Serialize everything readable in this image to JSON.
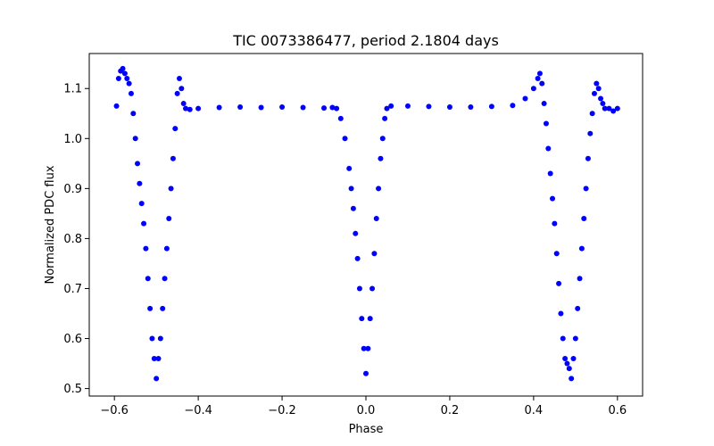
{
  "chart_data": {
    "type": "scatter",
    "title": "TIC 0073386477, period 2.1804 days",
    "xlabel": "Phase",
    "ylabel": "Normalized PDC flux",
    "xlim": [
      -0.66,
      0.66
    ],
    "ylim": [
      0.485,
      1.17
    ],
    "xticks": [
      -0.6,
      -0.4,
      -0.2,
      0.0,
      0.2,
      0.4,
      0.6
    ],
    "xtick_labels": [
      "−0.6",
      "−0.4",
      "−0.2",
      "0.0",
      "0.2",
      "0.4",
      "0.6"
    ],
    "yticks": [
      0.5,
      0.6,
      0.7,
      0.8,
      0.9,
      1.0,
      1.1
    ],
    "ytick_labels": [
      "0.5",
      "0.6",
      "0.7",
      "0.8",
      "0.9",
      "1.0",
      "1.1"
    ],
    "grid": false,
    "series": [
      {
        "color": "#0000ff",
        "marker": "circle",
        "points": [
          [
            -0.595,
            1.065
          ],
          [
            -0.59,
            1.12
          ],
          [
            -0.585,
            1.135
          ],
          [
            -0.58,
            1.14
          ],
          [
            -0.575,
            1.13
          ],
          [
            -0.57,
            1.12
          ],
          [
            -0.565,
            1.11
          ],
          [
            -0.56,
            1.09
          ],
          [
            -0.555,
            1.05
          ],
          [
            -0.55,
            1.0
          ],
          [
            -0.545,
            0.95
          ],
          [
            -0.54,
            0.91
          ],
          [
            -0.535,
            0.87
          ],
          [
            -0.53,
            0.83
          ],
          [
            -0.525,
            0.78
          ],
          [
            -0.52,
            0.72
          ],
          [
            -0.515,
            0.66
          ],
          [
            -0.51,
            0.6
          ],
          [
            -0.505,
            0.56
          ],
          [
            -0.5,
            0.52
          ],
          [
            -0.495,
            0.56
          ],
          [
            -0.49,
            0.6
          ],
          [
            -0.485,
            0.66
          ],
          [
            -0.48,
            0.72
          ],
          [
            -0.475,
            0.78
          ],
          [
            -0.47,
            0.84
          ],
          [
            -0.465,
            0.9
          ],
          [
            -0.46,
            0.96
          ],
          [
            -0.455,
            1.02
          ],
          [
            -0.45,
            1.09
          ],
          [
            -0.445,
            1.12
          ],
          [
            -0.44,
            1.1
          ],
          [
            -0.435,
            1.07
          ],
          [
            -0.43,
            1.06
          ],
          [
            -0.42,
            1.058
          ],
          [
            -0.4,
            1.06
          ],
          [
            -0.35,
            1.062
          ],
          [
            -0.3,
            1.063
          ],
          [
            -0.25,
            1.062
          ],
          [
            -0.2,
            1.063
          ],
          [
            -0.15,
            1.062
          ],
          [
            -0.1,
            1.061
          ],
          [
            -0.08,
            1.062
          ],
          [
            -0.07,
            1.06
          ],
          [
            -0.06,
            1.04
          ],
          [
            -0.05,
            1.0
          ],
          [
            -0.04,
            0.94
          ],
          [
            -0.035,
            0.9
          ],
          [
            -0.03,
            0.86
          ],
          [
            -0.025,
            0.81
          ],
          [
            -0.02,
            0.76
          ],
          [
            -0.015,
            0.7
          ],
          [
            -0.01,
            0.64
          ],
          [
            -0.005,
            0.58
          ],
          [
            0.0,
            0.53
          ],
          [
            0.005,
            0.58
          ],
          [
            0.01,
            0.64
          ],
          [
            0.015,
            0.7
          ],
          [
            0.02,
            0.77
          ],
          [
            0.025,
            0.84
          ],
          [
            0.03,
            0.9
          ],
          [
            0.035,
            0.96
          ],
          [
            0.04,
            1.0
          ],
          [
            0.045,
            1.04
          ],
          [
            0.05,
            1.06
          ],
          [
            0.06,
            1.065
          ],
          [
            0.1,
            1.065
          ],
          [
            0.15,
            1.064
          ],
          [
            0.2,
            1.063
          ],
          [
            0.25,
            1.063
          ],
          [
            0.3,
            1.064
          ],
          [
            0.35,
            1.066
          ],
          [
            0.38,
            1.08
          ],
          [
            0.4,
            1.1
          ],
          [
            0.41,
            1.12
          ],
          [
            0.415,
            1.13
          ],
          [
            0.42,
            1.11
          ],
          [
            0.425,
            1.07
          ],
          [
            0.43,
            1.03
          ],
          [
            0.435,
            0.98
          ],
          [
            0.44,
            0.93
          ],
          [
            0.445,
            0.88
          ],
          [
            0.45,
            0.83
          ],
          [
            0.455,
            0.77
          ],
          [
            0.46,
            0.71
          ],
          [
            0.465,
            0.65
          ],
          [
            0.47,
            0.6
          ],
          [
            0.475,
            0.56
          ],
          [
            0.48,
            0.55
          ],
          [
            0.485,
            0.54
          ],
          [
            0.49,
            0.52
          ],
          [
            0.495,
            0.56
          ],
          [
            0.5,
            0.6
          ],
          [
            0.505,
            0.66
          ],
          [
            0.51,
            0.72
          ],
          [
            0.515,
            0.78
          ],
          [
            0.52,
            0.84
          ],
          [
            0.525,
            0.9
          ],
          [
            0.53,
            0.96
          ],
          [
            0.535,
            1.01
          ],
          [
            0.54,
            1.05
          ],
          [
            0.545,
            1.09
          ],
          [
            0.55,
            1.11
          ],
          [
            0.555,
            1.1
          ],
          [
            0.56,
            1.08
          ],
          [
            0.565,
            1.07
          ],
          [
            0.57,
            1.06
          ],
          [
            0.58,
            1.06
          ],
          [
            0.59,
            1.055
          ],
          [
            0.6,
            1.06
          ]
        ]
      }
    ]
  }
}
